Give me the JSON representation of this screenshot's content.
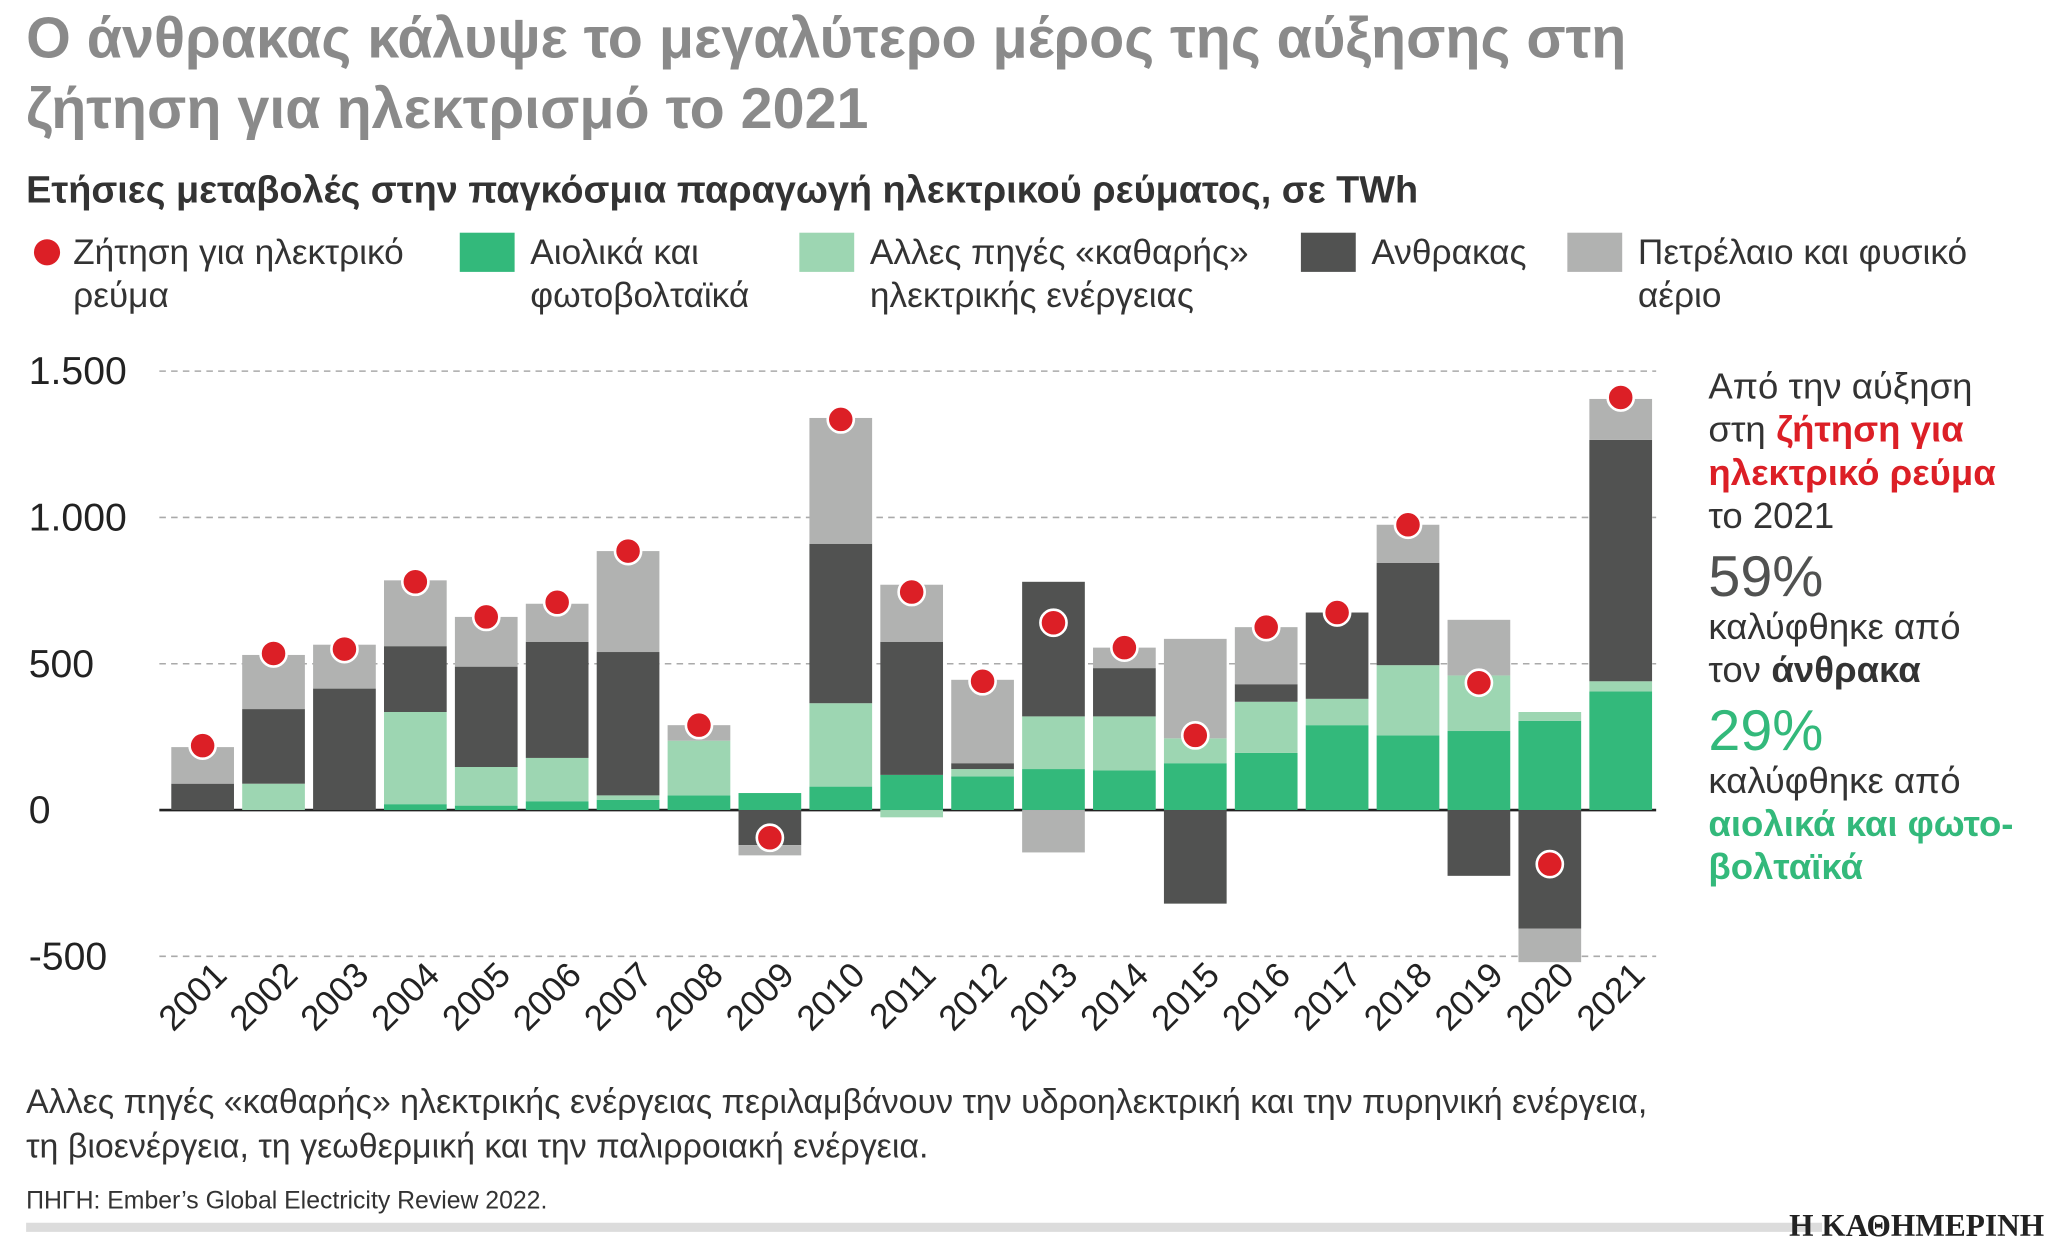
{
  "chart_data": {
    "type": "bar",
    "title": "Ο άνθρακας κάλυψε το μεγαλύτερο μέρος της αύξησης στη ζήτηση για ηλεκτρισμό το 2021",
    "subtitle": "Ετήσιες μεταβολές στην παγκόσμια παραγωγή ηλεκτρικού ρεύματος, σε TWh",
    "categories": [
      "2001",
      "2002",
      "2003",
      "2004",
      "2005",
      "2006",
      "2007",
      "2008",
      "2009",
      "2010",
      "2011",
      "2012",
      "2013",
      "2014",
      "2015",
      "2016",
      "2017",
      "2018",
      "2019",
      "2020",
      "2021"
    ],
    "series": [
      {
        "name": "Ζήτηση για ηλεκτρικό ρεύμα",
        "color": "#dc1f26",
        "mark": "dot",
        "values": [
          220,
          535,
          550,
          780,
          660,
          710,
          885,
          290,
          -95,
          1335,
          745,
          440,
          640,
          555,
          255,
          625,
          675,
          975,
          435,
          -185,
          1410
        ]
      },
      {
        "name": "Αιολικά και φωτοβολταϊκά",
        "color": "#33b97b",
        "mark": "bar",
        "values": [
          0,
          0,
          0,
          20,
          15,
          30,
          35,
          50,
          58,
          80,
          120,
          115,
          140,
          135,
          160,
          195,
          290,
          255,
          270,
          305,
          405
        ]
      },
      {
        "name": "Αλλες πηγές «καθαρής» ηλεκτρικής ενέργειας",
        "color": "#9dd6b2",
        "mark": "bar",
        "values": [
          0,
          90,
          0,
          315,
          132,
          148,
          15,
          187,
          0,
          285,
          -25,
          25,
          180,
          185,
          85,
          175,
          90,
          240,
          190,
          30,
          35
        ]
      },
      {
        "name": "Ανθρακας",
        "color": "#515251",
        "mark": "bar",
        "values": [
          90,
          255,
          415,
          225,
          343,
          397,
          490,
          0,
          -120,
          545,
          455,
          20,
          460,
          165,
          -320,
          60,
          295,
          350,
          -225,
          -405,
          825
        ]
      },
      {
        "name": "Πετρέλαιο και φυσικό αέριο",
        "color": "#b1b2b1",
        "mark": "bar",
        "values": [
          125,
          185,
          150,
          225,
          170,
          130,
          345,
          53,
          -35,
          430,
          195,
          285,
          -145,
          70,
          340,
          195,
          0,
          130,
          190,
          -115,
          140
        ]
      }
    ],
    "ylim": [
      -500,
      1500
    ],
    "yticks": [
      {
        "value": 1500,
        "label": "1.500"
      },
      {
        "value": 1000,
        "label": "1.000"
      },
      500,
      0,
      -500
    ],
    "grid": true,
    "annotation": [
      [
        {
          "text": "Από την αύξηση",
          "color": "#333333",
          "style": "normal"
        }
      ],
      [
        {
          "text": "στη",
          "color": "#333333",
          "style": "normal"
        },
        {
          "text": "ζήτηση για",
          "color": "#dc1f26",
          "style": "bold"
        }
      ],
      [
        {
          "text": "ηλεκτρικό ρεύμα",
          "color": "#dc1f26",
          "style": "bold"
        }
      ],
      [
        {
          "text": "το 2021",
          "color": "#333333",
          "style": "normal"
        }
      ],
      [
        {
          "text": "59%",
          "color": "#515251",
          "style": "large"
        }
      ],
      [
        {
          "text": "καλύφθηκε από",
          "color": "#333333",
          "style": "normal"
        }
      ],
      [
        {
          "text": "τον",
          "color": "#333333",
          "style": "normal"
        },
        {
          "text": "άνθρακα",
          "color": "#333333",
          "style": "bold"
        }
      ],
      [
        {
          "text": "29%",
          "color": "#33b97b",
          "style": "large"
        }
      ],
      [
        {
          "text": "καλύφθηκε από",
          "color": "#333333",
          "style": "normal"
        }
      ],
      [
        {
          "text": "αιολικά και φωτο-",
          "color": "#33b97b",
          "style": "bold"
        }
      ],
      [
        {
          "text": "βολταϊκά",
          "color": "#33b97b",
          "style": "bold"
        }
      ]
    ],
    "note": "Αλλες πηγές «καθαρής» ηλεκτρικής ενέργειας περιλαμβάνουν την υδροηλεκτρική και την πυρηνική ενέργεια, τη βιοενέργεια, τη γεωθερμική και την παλιρροιακή ενέργεια.",
    "source": "ΠΗΓΗ: Ember’s Global Electricity Review 2022.",
    "publisher": "Η ΚΑΘΗΜΕΡΙΝΗ"
  }
}
